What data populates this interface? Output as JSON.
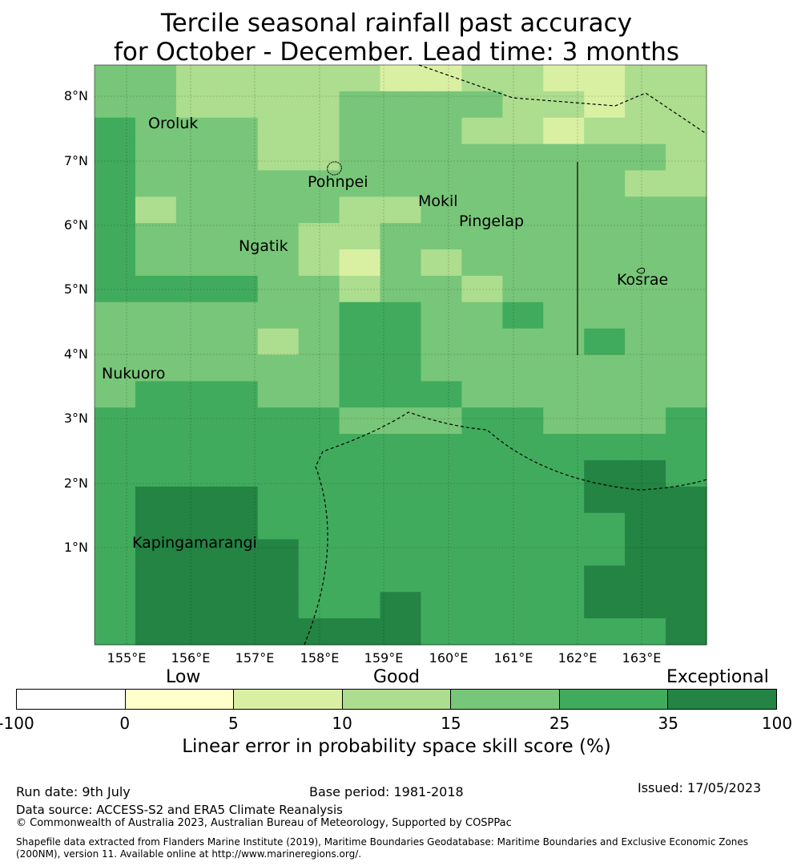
{
  "title_line1": "Tercile seasonal rainfall past accuracy",
  "title_line2": "for October - December. Lead time: 3 months",
  "lat_labels": [
    "8°N",
    "7°N",
    "6°N",
    "5°N",
    "4°N",
    "3°N",
    "2°N",
    "1°N"
  ],
  "lon_labels": [
    "155°E",
    "156°E",
    "157°E",
    "158°E",
    "159°E",
    "160°E",
    "161°E",
    "162°E",
    "163°E"
  ],
  "places": [
    "Oroluk",
    "Pohnpei",
    "Mokil",
    "Pingelap",
    "Ngatik",
    "Kosrae",
    "Nukuoro",
    "Kapingamarangi"
  ],
  "colorbar": {
    "categories": {
      "low": "Low",
      "good": "Good",
      "exceptional": "Exceptional"
    },
    "ticks": [
      "-100",
      "0",
      "5",
      "10",
      "15",
      "25",
      "35",
      "100"
    ],
    "colors": [
      "#ffffff",
      "#ffffcc",
      "#d9f0a3",
      "#addd8e",
      "#78c679",
      "#41ab5d",
      "#238443"
    ],
    "label": "Linear error in probability space skill score (%)"
  },
  "grid_levels": [
    [
      3,
      3,
      2,
      2,
      2,
      2,
      2,
      1,
      1,
      2,
      2,
      1,
      1,
      2,
      2
    ],
    [
      3,
      3,
      2,
      2,
      2,
      2,
      3,
      3,
      3,
      3,
      2,
      2,
      1,
      2,
      2
    ],
    [
      4,
      3,
      3,
      3,
      2,
      2,
      3,
      3,
      3,
      2,
      2,
      1,
      2,
      2,
      2
    ],
    [
      4,
      3,
      3,
      3,
      2,
      2,
      3,
      3,
      3,
      3,
      3,
      3,
      3,
      3,
      2
    ],
    [
      4,
      3,
      3,
      3,
      3,
      3,
      3,
      3,
      3,
      3,
      3,
      3,
      3,
      2,
      2
    ],
    [
      4,
      2,
      3,
      3,
      3,
      3,
      2,
      2,
      3,
      3,
      3,
      3,
      3,
      3,
      3
    ],
    [
      4,
      3,
      3,
      3,
      3,
      2,
      2,
      3,
      3,
      3,
      3,
      3,
      3,
      3,
      3
    ],
    [
      4,
      3,
      3,
      3,
      3,
      2,
      1,
      3,
      2,
      3,
      3,
      3,
      3,
      3,
      3
    ],
    [
      4,
      4,
      4,
      4,
      3,
      3,
      2,
      3,
      3,
      2,
      3,
      3,
      3,
      3,
      3
    ],
    [
      3,
      3,
      3,
      3,
      3,
      3,
      4,
      4,
      3,
      3,
      4,
      3,
      3,
      3,
      3
    ],
    [
      3,
      3,
      3,
      3,
      2,
      3,
      4,
      4,
      3,
      3,
      3,
      3,
      4,
      3,
      3
    ],
    [
      3,
      3,
      3,
      3,
      3,
      3,
      4,
      4,
      3,
      3,
      3,
      3,
      3,
      3,
      3
    ],
    [
      3,
      4,
      4,
      4,
      3,
      3,
      4,
      4,
      4,
      3,
      3,
      3,
      3,
      3,
      3
    ],
    [
      4,
      4,
      4,
      4,
      4,
      4,
      3,
      3,
      3,
      4,
      4,
      3,
      3,
      3,
      4
    ],
    [
      4,
      4,
      4,
      4,
      4,
      4,
      4,
      4,
      4,
      4,
      4,
      4,
      4,
      4,
      4
    ],
    [
      4,
      4,
      4,
      4,
      4,
      4,
      4,
      4,
      4,
      4,
      4,
      4,
      5,
      5,
      4
    ],
    [
      4,
      5,
      5,
      5,
      4,
      4,
      4,
      4,
      4,
      4,
      4,
      4,
      5,
      5,
      5
    ],
    [
      4,
      5,
      5,
      5,
      4,
      4,
      4,
      4,
      4,
      4,
      4,
      4,
      4,
      5,
      5
    ],
    [
      4,
      5,
      5,
      5,
      5,
      4,
      4,
      4,
      4,
      4,
      4,
      4,
      4,
      5,
      5
    ],
    [
      4,
      5,
      5,
      5,
      5,
      4,
      4,
      4,
      4,
      4,
      4,
      4,
      5,
      5,
      5
    ],
    [
      4,
      5,
      5,
      5,
      5,
      4,
      4,
      5,
      4,
      4,
      4,
      4,
      5,
      5,
      5
    ],
    [
      4,
      5,
      5,
      5,
      5,
      5,
      5,
      5,
      4,
      4,
      4,
      4,
      4,
      4,
      5
    ]
  ],
  "footer": {
    "run_date": "Run date: 9th July",
    "base_period": "Base period: 1981-2018",
    "issued": "Issued: 17/05/2023",
    "data_source": "Data source: ACCESS-S2 and ERA5 Climate Reanalysis",
    "copyright": "© Commonwealth of Australia 2023, Australian Bureau of Meteorology, Supported by COSPPac",
    "shapefile": "Shapefile data extracted from Flanders Marine Institute (2019), Maritime Boundaries Geodatabase: Maritime Boundaries and Exclusive Economic Zones (200NM), version 11. Available online at http://www.marineregions.org/."
  }
}
